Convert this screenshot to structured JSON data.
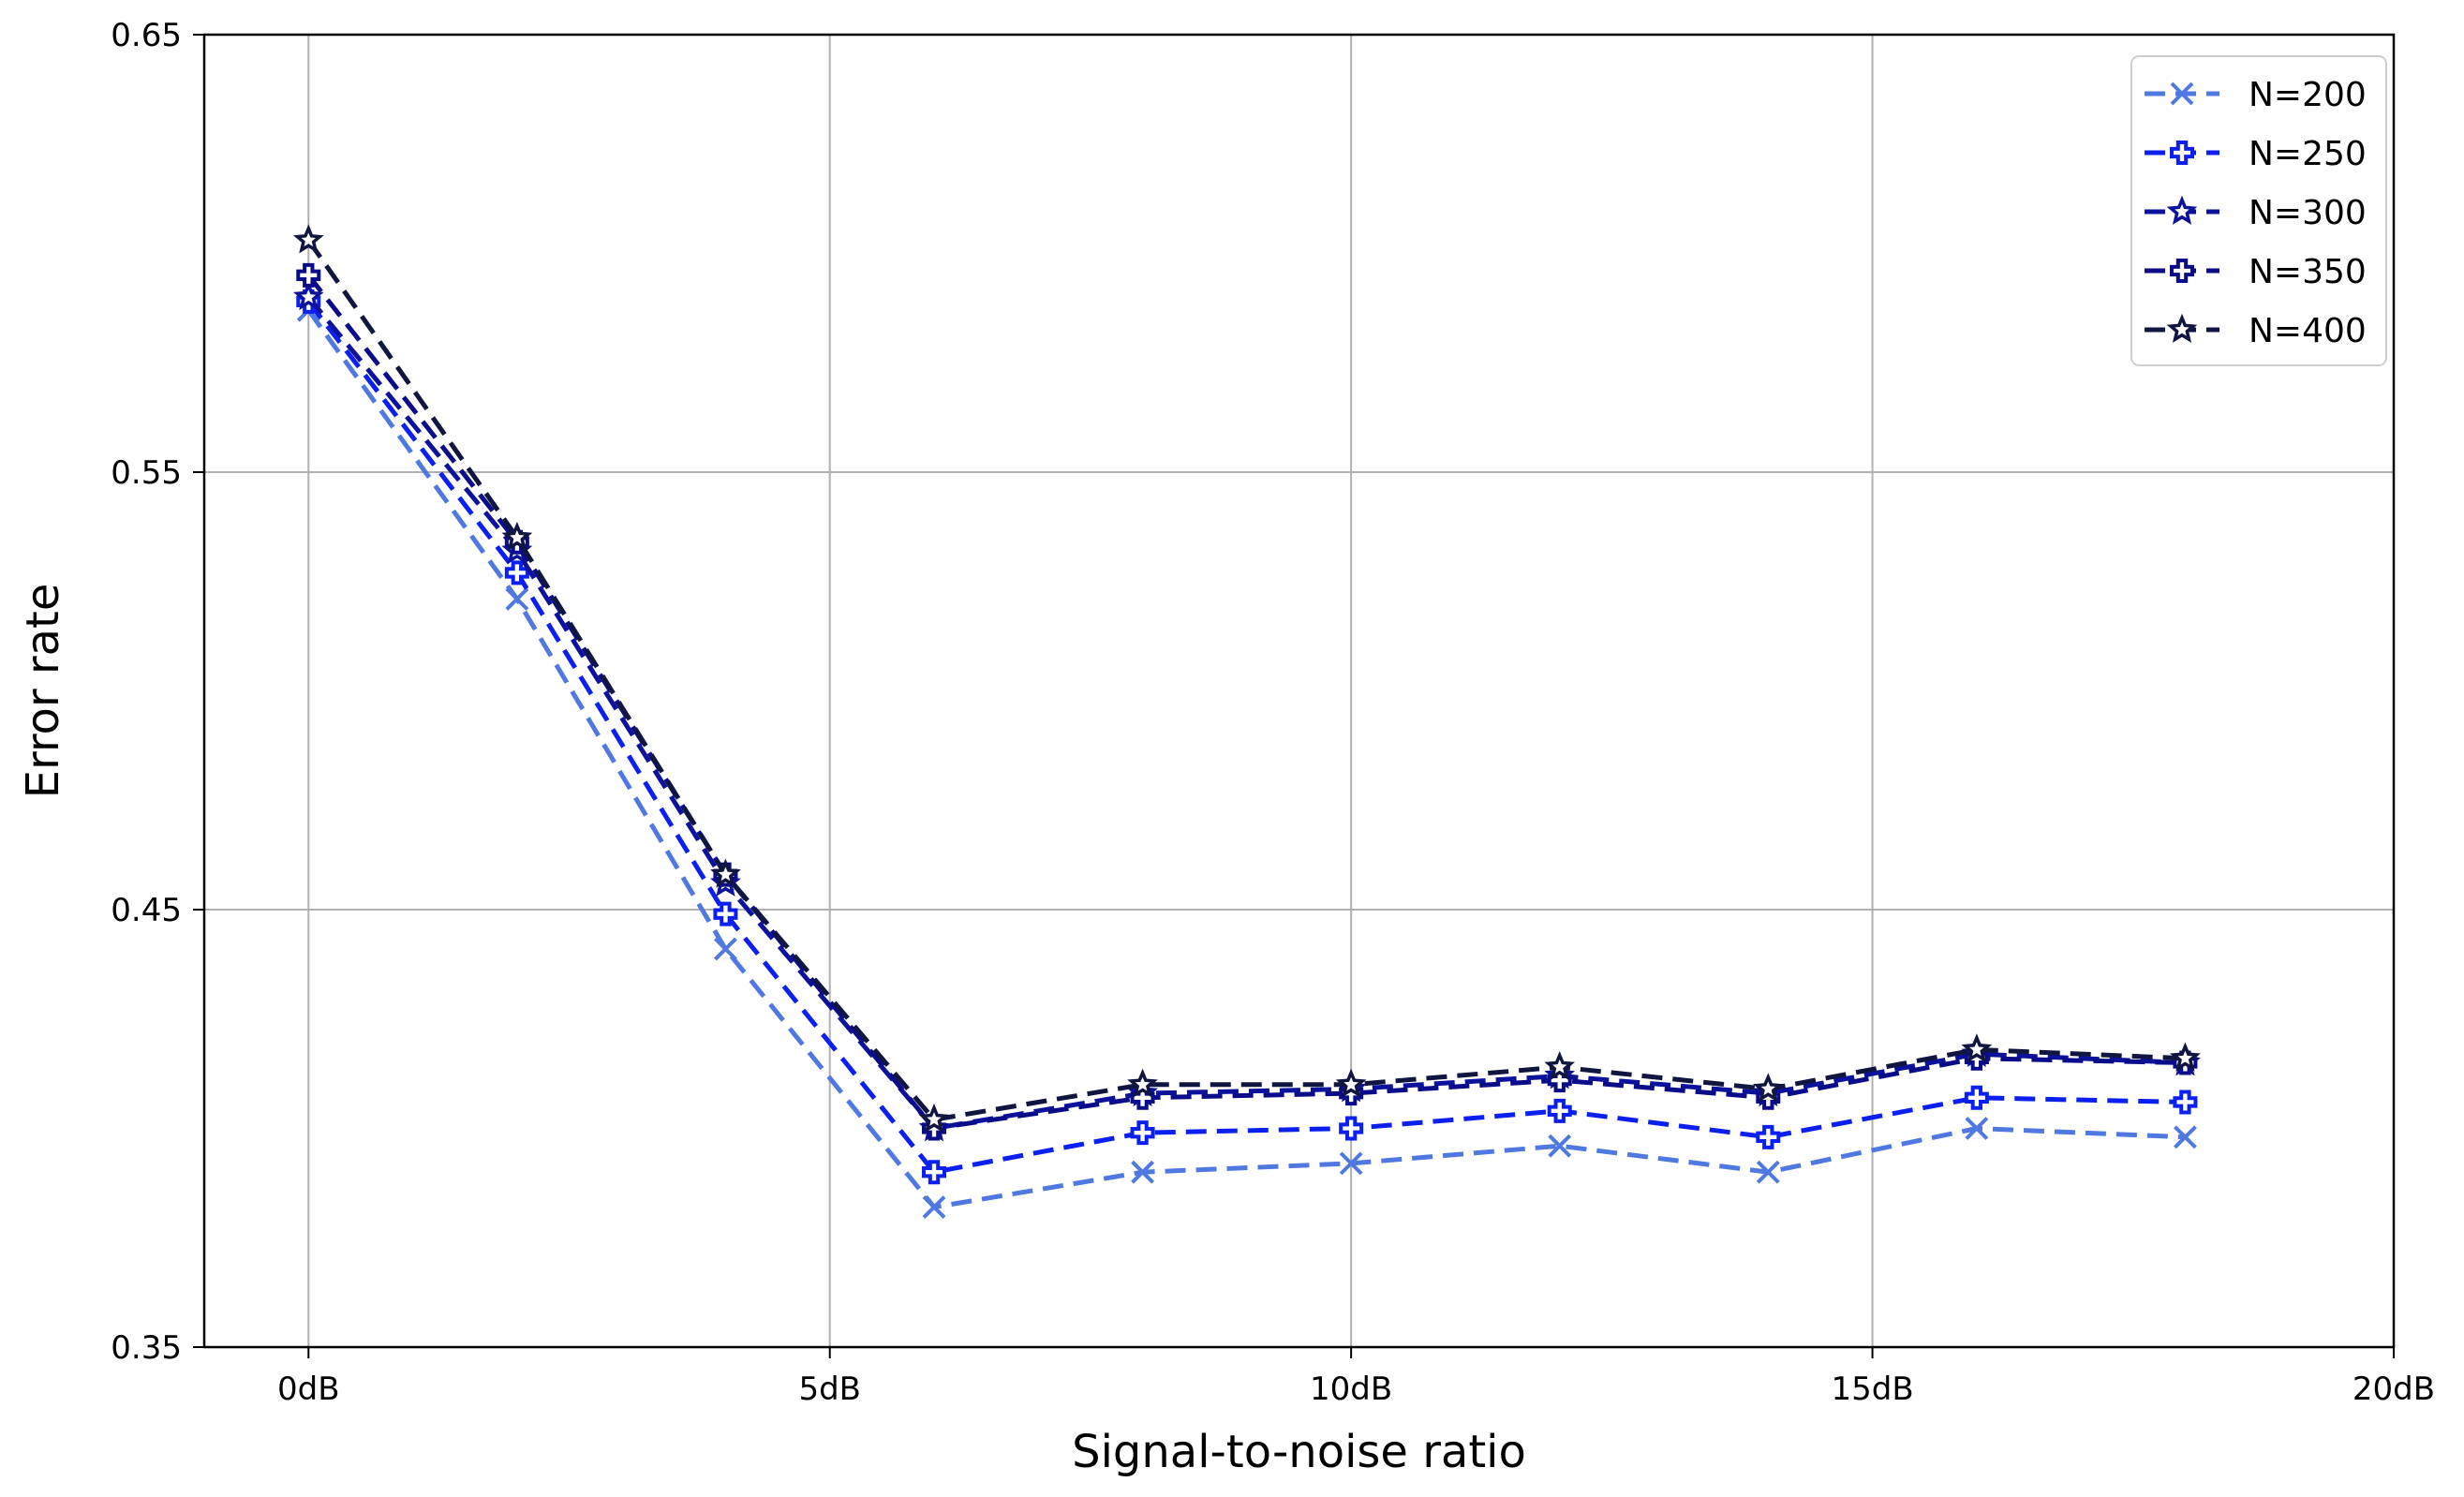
{
  "chart_data": {
    "type": "line",
    "title": "",
    "xlabel": "Signal-to-noise ratio",
    "ylabel": "Error rate",
    "xlim": [
      -1,
      20
    ],
    "ylim": [
      0.35,
      0.65
    ],
    "x_ticks": [
      0,
      5,
      10,
      15,
      20
    ],
    "x_tick_labels": [
      "0dB",
      "5dB",
      "10dB",
      "15dB",
      "20dB"
    ],
    "y_ticks": [
      0.35,
      0.45,
      0.55,
      0.65
    ],
    "y_tick_labels": [
      "0.35",
      "0.45",
      "0.55",
      "0.65"
    ],
    "grid": true,
    "legend_position": "top-right",
    "x": [
      0,
      2,
      4,
      6,
      8,
      10,
      12,
      14,
      16,
      18
    ],
    "series": [
      {
        "name": "N=200",
        "color": "#4f79e0",
        "marker": "x",
        "values": [
          0.587,
          0.521,
          0.441,
          0.382,
          0.39,
          0.392,
          0.396,
          0.39,
          0.4,
          0.398
        ]
      },
      {
        "name": "N=250",
        "color": "#0a1ff0",
        "marker": "plus",
        "values": [
          0.589,
          0.527,
          0.449,
          0.39,
          0.399,
          0.4,
          0.404,
          0.398,
          0.407,
          0.406
        ]
      },
      {
        "name": "N=300",
        "color": "#0d129c",
        "marker": "star",
        "values": [
          0.59,
          0.532,
          0.456,
          0.4,
          0.408,
          0.409,
          0.412,
          0.408,
          0.417,
          0.415
        ]
      },
      {
        "name": "N=350",
        "color": "#0b0c8a",
        "marker": "plus",
        "values": [
          0.595,
          0.534,
          0.458,
          0.4,
          0.407,
          0.408,
          0.411,
          0.407,
          0.416,
          0.415
        ]
      },
      {
        "name": "N=400",
        "color": "#10163f",
        "marker": "star",
        "values": [
          0.603,
          0.535,
          0.458,
          0.402,
          0.41,
          0.41,
          0.414,
          0.409,
          0.418,
          0.416
        ]
      }
    ]
  }
}
